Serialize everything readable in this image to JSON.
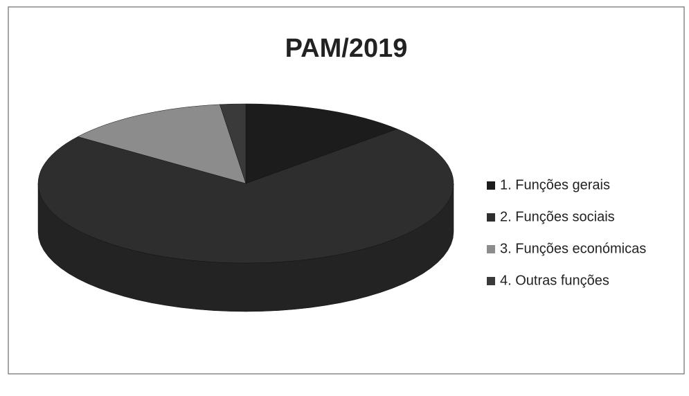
{
  "chart_data": {
    "type": "pie3d",
    "title": "PAM/2019",
    "categories": [
      "1. Funções gerais",
      "2. Funções sociais",
      "3. Funções económicas",
      "4. Outras funções"
    ],
    "values": [
      13,
      72,
      13,
      2
    ],
    "colors": [
      "#1c1c1c",
      "#2e2e2e",
      "#8c8c8c",
      "#3a3a3a"
    ],
    "legend": "right"
  }
}
